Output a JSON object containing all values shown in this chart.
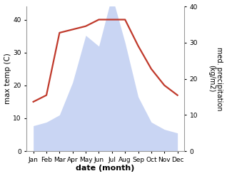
{
  "months": [
    "Jan",
    "Feb",
    "Mar",
    "Apr",
    "May",
    "Jun",
    "Jul",
    "Aug",
    "Sep",
    "Oct",
    "Nov",
    "Dec"
  ],
  "temperature": [
    15,
    17,
    36,
    37,
    38,
    40,
    40,
    40,
    32,
    25,
    20,
    17
  ],
  "precipitation": [
    7,
    8,
    10,
    19,
    32,
    29,
    43,
    30,
    15,
    8,
    6,
    5
  ],
  "temp_color": "#c0392b",
  "precip_fill_color": "#b8c8f0",
  "precip_alpha": 0.75,
  "ylabel_left": "max temp (C)",
  "ylabel_right": "med. precipitation\n(kg/m2)",
  "xlabel": "date (month)",
  "ylim_left": [
    0,
    44
  ],
  "ylim_right": [
    0,
    40
  ],
  "yticks_left": [
    0,
    10,
    20,
    30,
    40
  ],
  "yticks_right": [
    0,
    10,
    20,
    30,
    40
  ],
  "background_color": "#ffffff",
  "temp_linewidth": 1.6,
  "figsize": [
    3.18,
    2.47
  ],
  "dpi": 100
}
